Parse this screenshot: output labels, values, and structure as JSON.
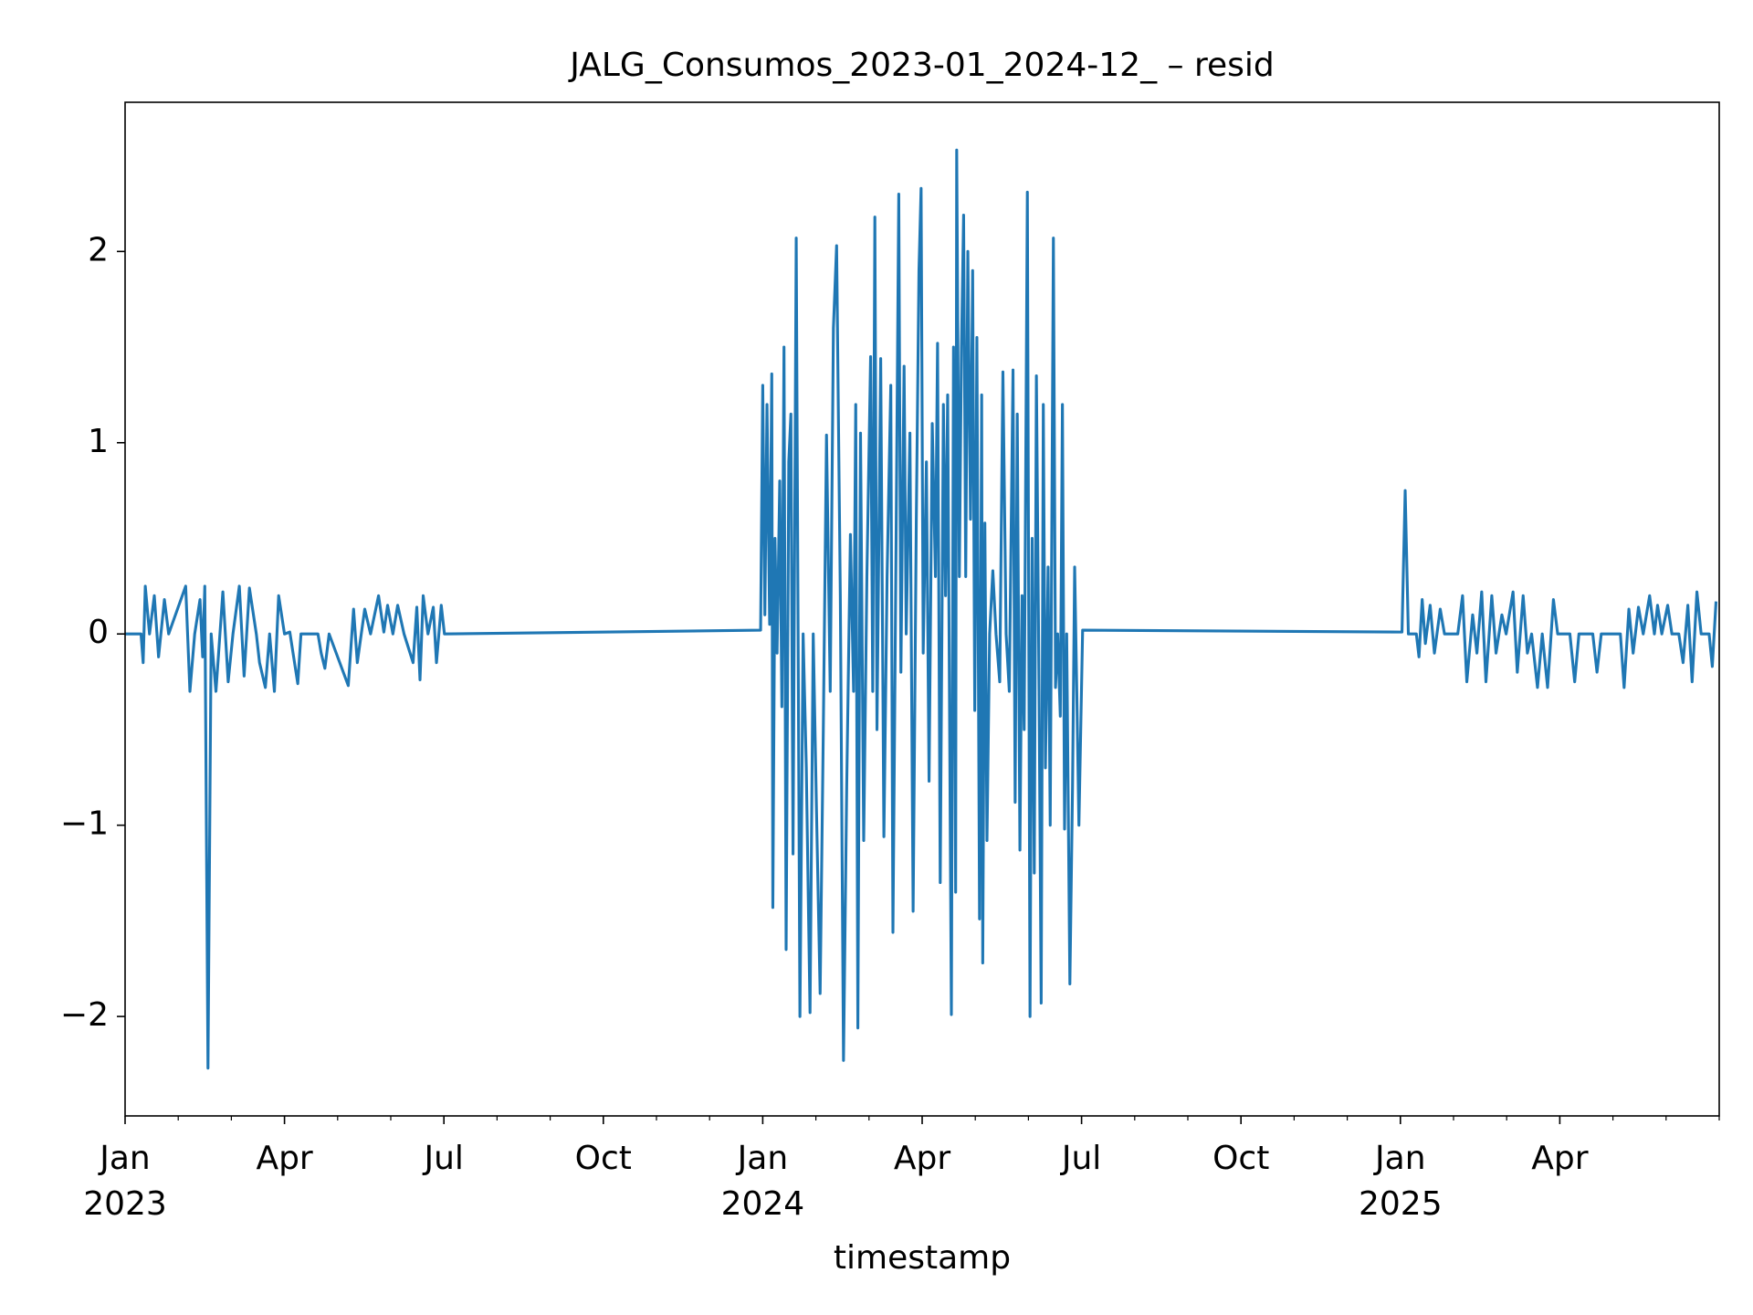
{
  "chart_data": {
    "type": "line",
    "title": "JALG_Consumos_2023-01_2024-12_ – resid",
    "xlabel": "timestamp",
    "color": "#1f77b4",
    "xlim": [
      0,
      30
    ],
    "ylim": [
      -2.52,
      2.78
    ],
    "xticks": [
      {
        "value": 0,
        "label": "Jan\n2023"
      },
      {
        "value": 3,
        "label": "Apr"
      },
      {
        "value": 6,
        "label": "Jul"
      },
      {
        "value": 9,
        "label": "Oct"
      },
      {
        "value": 12,
        "label": "Jan\n2024"
      },
      {
        "value": 15,
        "label": "Apr"
      },
      {
        "value": 18,
        "label": "Jul"
      },
      {
        "value": 21,
        "label": "Oct"
      },
      {
        "value": 24,
        "label": "Jan\n2025"
      },
      {
        "value": 27,
        "label": "Apr"
      }
    ],
    "xminorticks": [
      1,
      2,
      4,
      5,
      7,
      8,
      10,
      11,
      13,
      14,
      16,
      17,
      19,
      20,
      22,
      23,
      25,
      26,
      28,
      29,
      30
    ],
    "yticks": [
      {
        "value": -2,
        "label": "−2"
      },
      {
        "value": -1,
        "label": "−1"
      },
      0,
      1,
      2
    ],
    "x": [
      0,
      0.3,
      0.34,
      0.38,
      0.46,
      0.55,
      0.63,
      0.74,
      0.82,
      1.14,
      1.22,
      1.31,
      1.41,
      1.46,
      1.5,
      1.56,
      1.62,
      1.71,
      1.84,
      1.94,
      2.03,
      2.15,
      2.24,
      2.34,
      2.47,
      2.53,
      2.64,
      2.72,
      2.81,
      2.89,
      3.0,
      3.1,
      3.25,
      3.31,
      3.63,
      3.69,
      3.76,
      3.84,
      4.2,
      4.3,
      4.37,
      4.51,
      4.62,
      4.77,
      4.87,
      4.94,
      5.04,
      5.13,
      5.25,
      5.42,
      5.49,
      5.55,
      5.61,
      5.7,
      5.8,
      5.86,
      5.95,
      6.01,
      11.96,
      12.0,
      12.04,
      12.08,
      12.13,
      12.17,
      12.19,
      12.23,
      12.27,
      12.32,
      12.36,
      12.4,
      12.44,
      12.49,
      12.53,
      12.57,
      12.63,
      12.7,
      12.76,
      12.82,
      12.89,
      12.95,
      13.01,
      13.08,
      13.14,
      13.2,
      13.27,
      13.33,
      13.39,
      13.46,
      13.52,
      13.58,
      13.65,
      13.71,
      13.75,
      13.79,
      13.84,
      13.9,
      13.96,
      14.03,
      14.07,
      14.11,
      14.15,
      14.22,
      14.28,
      14.34,
      14.41,
      14.45,
      14.51,
      14.56,
      14.6,
      14.66,
      14.7,
      14.77,
      14.83,
      14.89,
      14.94,
      14.98,
      15.02,
      15.08,
      15.13,
      15.19,
      15.25,
      15.29,
      15.34,
      15.4,
      15.44,
      15.48,
      15.55,
      15.59,
      15.63,
      15.65,
      15.7,
      15.74,
      15.78,
      15.82,
      15.86,
      15.91,
      15.95,
      15.99,
      16.03,
      16.08,
      16.12,
      16.14,
      16.18,
      16.22,
      16.27,
      16.33,
      16.39,
      16.46,
      16.52,
      16.58,
      16.64,
      16.71,
      16.75,
      16.79,
      16.84,
      16.88,
      16.92,
      16.98,
      17.03,
      17.07,
      17.11,
      17.15,
      17.2,
      17.24,
      17.28,
      17.32,
      17.37,
      17.41,
      17.47,
      17.51,
      17.55,
      17.6,
      17.64,
      17.68,
      17.72,
      17.78,
      17.83,
      17.87,
      17.91,
      17.95,
      18.02,
      24.03,
      24.09,
      24.15,
      24.3,
      24.35,
      24.41,
      24.47,
      24.56,
      24.64,
      24.75,
      24.83,
      25.08,
      25.17,
      25.25,
      25.36,
      25.44,
      25.53,
      25.61,
      25.72,
      25.8,
      25.91,
      25.99,
      26.12,
      26.2,
      26.31,
      26.39,
      26.47,
      26.58,
      26.67,
      26.77,
      26.88,
      26.96,
      27.19,
      27.28,
      27.36,
      27.62,
      27.7,
      27.78,
      28.14,
      28.21,
      28.3,
      28.38,
      28.48,
      28.57,
      28.69,
      28.78,
      28.84,
      28.92,
      29.03,
      29.11,
      29.24,
      29.32,
      29.41,
      29.49,
      29.58,
      29.66,
      29.81,
      29.87,
      29.94
    ],
    "values": [
      0,
      0,
      -0.15,
      0.25,
      0,
      0.2,
      -0.12,
      0.18,
      0,
      0.25,
      -0.3,
      0,
      0.18,
      -0.12,
      0.25,
      -2.27,
      0,
      -0.3,
      0.22,
      -0.25,
      0,
      0.25,
      -0.22,
      0.24,
      0,
      -0.15,
      -0.28,
      0,
      -0.3,
      0.2,
      0,
      0.01,
      -0.26,
      0,
      0,
      -0.1,
      -0.18,
      0,
      -0.27,
      0.13,
      -0.15,
      0.13,
      0,
      0.2,
      0.01,
      0.15,
      0,
      0.15,
      0,
      -0.15,
      0.14,
      -0.24,
      0.2,
      0,
      0.14,
      -0.15,
      0.15,
      0,
      0.02,
      1.3,
      0.1,
      1.2,
      0.05,
      1.36,
      -1.43,
      0.5,
      -0.1,
      0.8,
      -0.38,
      1.5,
      -1.65,
      0.9,
      1.15,
      -1.15,
      2.07,
      -2.0,
      0.0,
      -0.7,
      -1.98,
      0.0,
      -0.9,
      -1.88,
      -0.5,
      1.04,
      -0.3,
      1.6,
      2.03,
      0.2,
      -2.23,
      -0.8,
      0.52,
      -0.3,
      1.2,
      -2.06,
      1.05,
      -1.08,
      0.3,
      1.45,
      -0.3,
      2.18,
      -0.5,
      1.44,
      -1.06,
      0.3,
      1.3,
      -1.56,
      0.5,
      2.3,
      -0.2,
      1.4,
      0.0,
      1.05,
      -1.45,
      0.6,
      1.9,
      2.33,
      -0.1,
      0.9,
      -0.77,
      1.1,
      0.3,
      1.52,
      -1.3,
      1.2,
      0.2,
      1.25,
      -1.99,
      1.5,
      -1.35,
      2.53,
      0.3,
      1.5,
      2.19,
      0.3,
      2.0,
      0.6,
      1.9,
      -0.4,
      1.55,
      -1.49,
      1.25,
      -1.72,
      0.58,
      -1.08,
      0.0,
      0.33,
      0.0,
      -0.25,
      1.37,
      0.0,
      -0.3,
      1.38,
      -0.88,
      1.15,
      -1.13,
      0.2,
      -0.5,
      2.31,
      -2.0,
      0.5,
      -1.25,
      1.35,
      -0.3,
      -1.93,
      1.2,
      -0.7,
      0.35,
      -1.0,
      2.07,
      -0.28,
      0.0,
      -0.43,
      1.2,
      -1.02,
      0.0,
      -1.83,
      -0.8,
      0.35,
      -0.3,
      -1.0,
      0.02,
      0.01,
      0.75,
      0,
      0,
      -0.12,
      0.18,
      -0.05,
      0.15,
      -0.1,
      0.13,
      0,
      0,
      0.2,
      -0.25,
      0.1,
      -0.1,
      0.22,
      -0.25,
      0.2,
      -0.1,
      0.1,
      0,
      0.22,
      -0.2,
      0.2,
      -0.1,
      0,
      -0.28,
      0,
      -0.28,
      0.18,
      0,
      0,
      -0.25,
      0,
      0,
      -0.2,
      0,
      0,
      -0.28,
      0.13,
      -0.1,
      0.14,
      0,
      0.2,
      0,
      0.15,
      0,
      0.15,
      0,
      0,
      -0.15,
      0.15,
      -0.25,
      0.22,
      0,
      0,
      -0.17,
      0.17
    ]
  }
}
